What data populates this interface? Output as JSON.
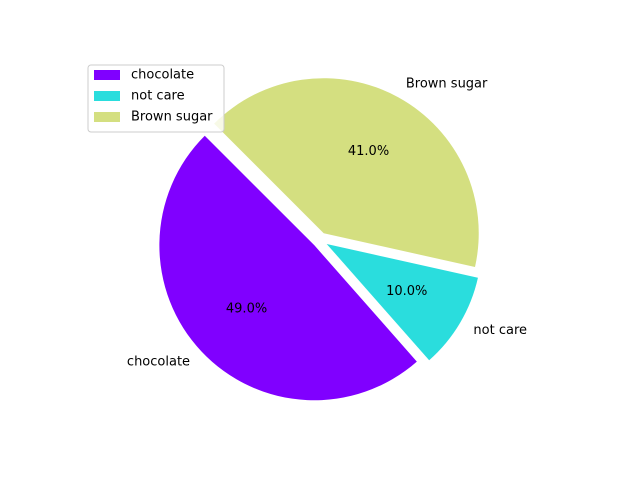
{
  "chart_data": {
    "type": "pie",
    "categories": [
      "chocolate",
      "not care",
      "Brown sugar"
    ],
    "values": [
      49.0,
      10.0,
      41.0
    ],
    "percent_labels": [
      "49.0%",
      "10.0%",
      "41.0%"
    ],
    "colors": [
      "#8000ff",
      "#2adddd",
      "#d4df80"
    ],
    "explode": [
      0.05,
      0.05,
      0.05
    ],
    "start_angle_deg": 135,
    "legend": {
      "entries": [
        "chocolate",
        "not care",
        "Brown sugar"
      ],
      "placement": "upper-left"
    }
  }
}
